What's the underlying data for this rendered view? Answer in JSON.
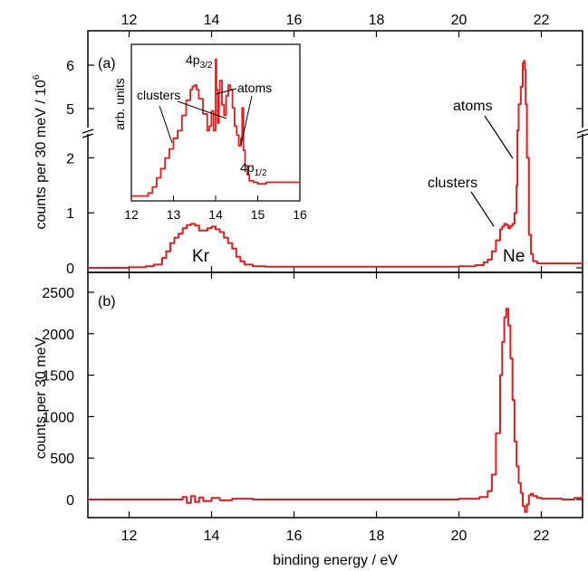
{
  "chart_data": [
    {
      "panel": "(a)",
      "type": "line",
      "xlabel": "binding energy / eV",
      "ylabel": "counts per 30 meV / 10",
      "ylabel_superscript": "6",
      "xlim": [
        11,
        23
      ],
      "xticks": [
        "12",
        "14",
        "16",
        "18",
        "20",
        "22"
      ],
      "yticks": [
        "0",
        "1",
        "2",
        "5",
        "6"
      ],
      "axis_break": {
        "from": 2.5,
        "to": 4.5
      },
      "annotations": {
        "kr": "Kr",
        "ne": "Ne",
        "clusters": "clusters",
        "atoms": "atoms"
      },
      "line_color": "#e41a1c",
      "series": [
        {
          "x": [
            11.0,
            11.5,
            12.0,
            12.4,
            12.6,
            12.8,
            12.9,
            13.0,
            13.1,
            13.2,
            13.3,
            13.4,
            13.5,
            13.6,
            13.7,
            13.8,
            13.9,
            14.0,
            14.1,
            14.2,
            14.3,
            14.4,
            14.5,
            14.6,
            14.7,
            14.8,
            15.0,
            15.3,
            16.0,
            17.0,
            18.0,
            19.0,
            20.0,
            20.4,
            20.6,
            20.7,
            20.8,
            20.9,
            21.0,
            21.05,
            21.1,
            21.15,
            21.2,
            21.25,
            21.3,
            21.35,
            21.4,
            21.42,
            21.45,
            21.5,
            21.55,
            21.58,
            21.6,
            21.62,
            21.65,
            21.7,
            21.75,
            21.8,
            21.9,
            22.0,
            22.5,
            23.0
          ],
          "y": [
            0.0,
            0.0,
            0.01,
            0.03,
            0.06,
            0.18,
            0.3,
            0.45,
            0.55,
            0.62,
            0.72,
            0.78,
            0.8,
            0.77,
            0.68,
            0.68,
            0.72,
            0.75,
            0.7,
            0.65,
            0.55,
            0.45,
            0.35,
            0.2,
            0.12,
            0.06,
            0.03,
            0.02,
            0.02,
            0.02,
            0.02,
            0.02,
            0.03,
            0.05,
            0.1,
            0.15,
            0.3,
            0.5,
            0.7,
            0.75,
            0.8,
            0.78,
            0.72,
            0.76,
            0.8,
            1.0,
            1.5,
            3.0,
            5.1,
            5.5,
            6.05,
            6.1,
            5.9,
            5.1,
            2.0,
            0.6,
            0.25,
            0.12,
            0.08,
            0.08,
            0.08,
            0.1
          ]
        }
      ],
      "inset": {
        "ylabel": "arb. units",
        "xlim": [
          12,
          16
        ],
        "xticks": [
          "12",
          "13",
          "14",
          "15",
          "16"
        ],
        "annotations": {
          "p32_main": "4p",
          "p32_sub": "3/2",
          "p12_main": "4p",
          "p12_sub": "1/2",
          "clusters": "clusters",
          "atoms": "atoms"
        },
        "series": [
          {
            "x": [
              12.0,
              12.2,
              12.4,
              12.5,
              12.6,
              12.7,
              12.8,
              12.9,
              13.0,
              13.1,
              13.2,
              13.3,
              13.4,
              13.45,
              13.5,
              13.55,
              13.6,
              13.7,
              13.8,
              13.85,
              13.9,
              13.95,
              14.0,
              14.02,
              14.05,
              14.08,
              14.1,
              14.15,
              14.2,
              14.25,
              14.3,
              14.35,
              14.4,
              14.45,
              14.5,
              14.55,
              14.6,
              14.63,
              14.66,
              14.7,
              14.75,
              14.8,
              14.9,
              15.0,
              15.2,
              15.5,
              16.0
            ],
            "y": [
              0.02,
              0.02,
              0.04,
              0.08,
              0.14,
              0.2,
              0.27,
              0.33,
              0.4,
              0.45,
              0.55,
              0.65,
              0.72,
              0.74,
              0.75,
              0.72,
              0.66,
              0.56,
              0.45,
              0.48,
              0.58,
              0.45,
              0.92,
              0.72,
              0.5,
              0.7,
              0.78,
              0.62,
              0.55,
              0.68,
              0.75,
              0.72,
              0.6,
              0.48,
              0.42,
              0.35,
              0.4,
              0.6,
              0.32,
              0.22,
              0.16,
              0.12,
              0.11,
              0.1,
              0.11,
              0.11,
              0.11
            ]
          }
        ]
      }
    },
    {
      "panel": "(b)",
      "type": "line",
      "xlabel": "binding energy / eV",
      "ylabel": "counts per 30 meV",
      "xlim": [
        11,
        23
      ],
      "ylim": [
        -250,
        2600
      ],
      "xticks": [
        "12",
        "14",
        "16",
        "18",
        "20",
        "22"
      ],
      "yticks": [
        "0",
        "500",
        "1000",
        "1500",
        "2000",
        "2500"
      ],
      "line_color": "#e41a1c",
      "series": [
        {
          "x": [
            11.0,
            12.0,
            13.0,
            13.3,
            13.4,
            13.5,
            13.6,
            13.7,
            13.8,
            14.0,
            14.2,
            14.5,
            15.0,
            16.0,
            17.0,
            18.0,
            19.0,
            20.0,
            20.5,
            20.7,
            20.8,
            20.9,
            21.0,
            21.05,
            21.1,
            21.15,
            21.2,
            21.25,
            21.3,
            21.35,
            21.4,
            21.45,
            21.5,
            21.55,
            21.6,
            21.65,
            21.7,
            21.75,
            21.8,
            21.9,
            22.0,
            22.5,
            22.8,
            23.0
          ],
          "y": [
            0,
            0,
            0,
            30,
            -40,
            40,
            -30,
            25,
            -20,
            20,
            -10,
            10,
            0,
            0,
            0,
            0,
            0,
            10,
            30,
            100,
            300,
            800,
            1500,
            1900,
            2200,
            2300,
            2100,
            1700,
            1200,
            700,
            400,
            200,
            80,
            -80,
            -150,
            -60,
            50,
            70,
            40,
            20,
            10,
            0,
            20,
            80
          ]
        }
      ]
    }
  ]
}
